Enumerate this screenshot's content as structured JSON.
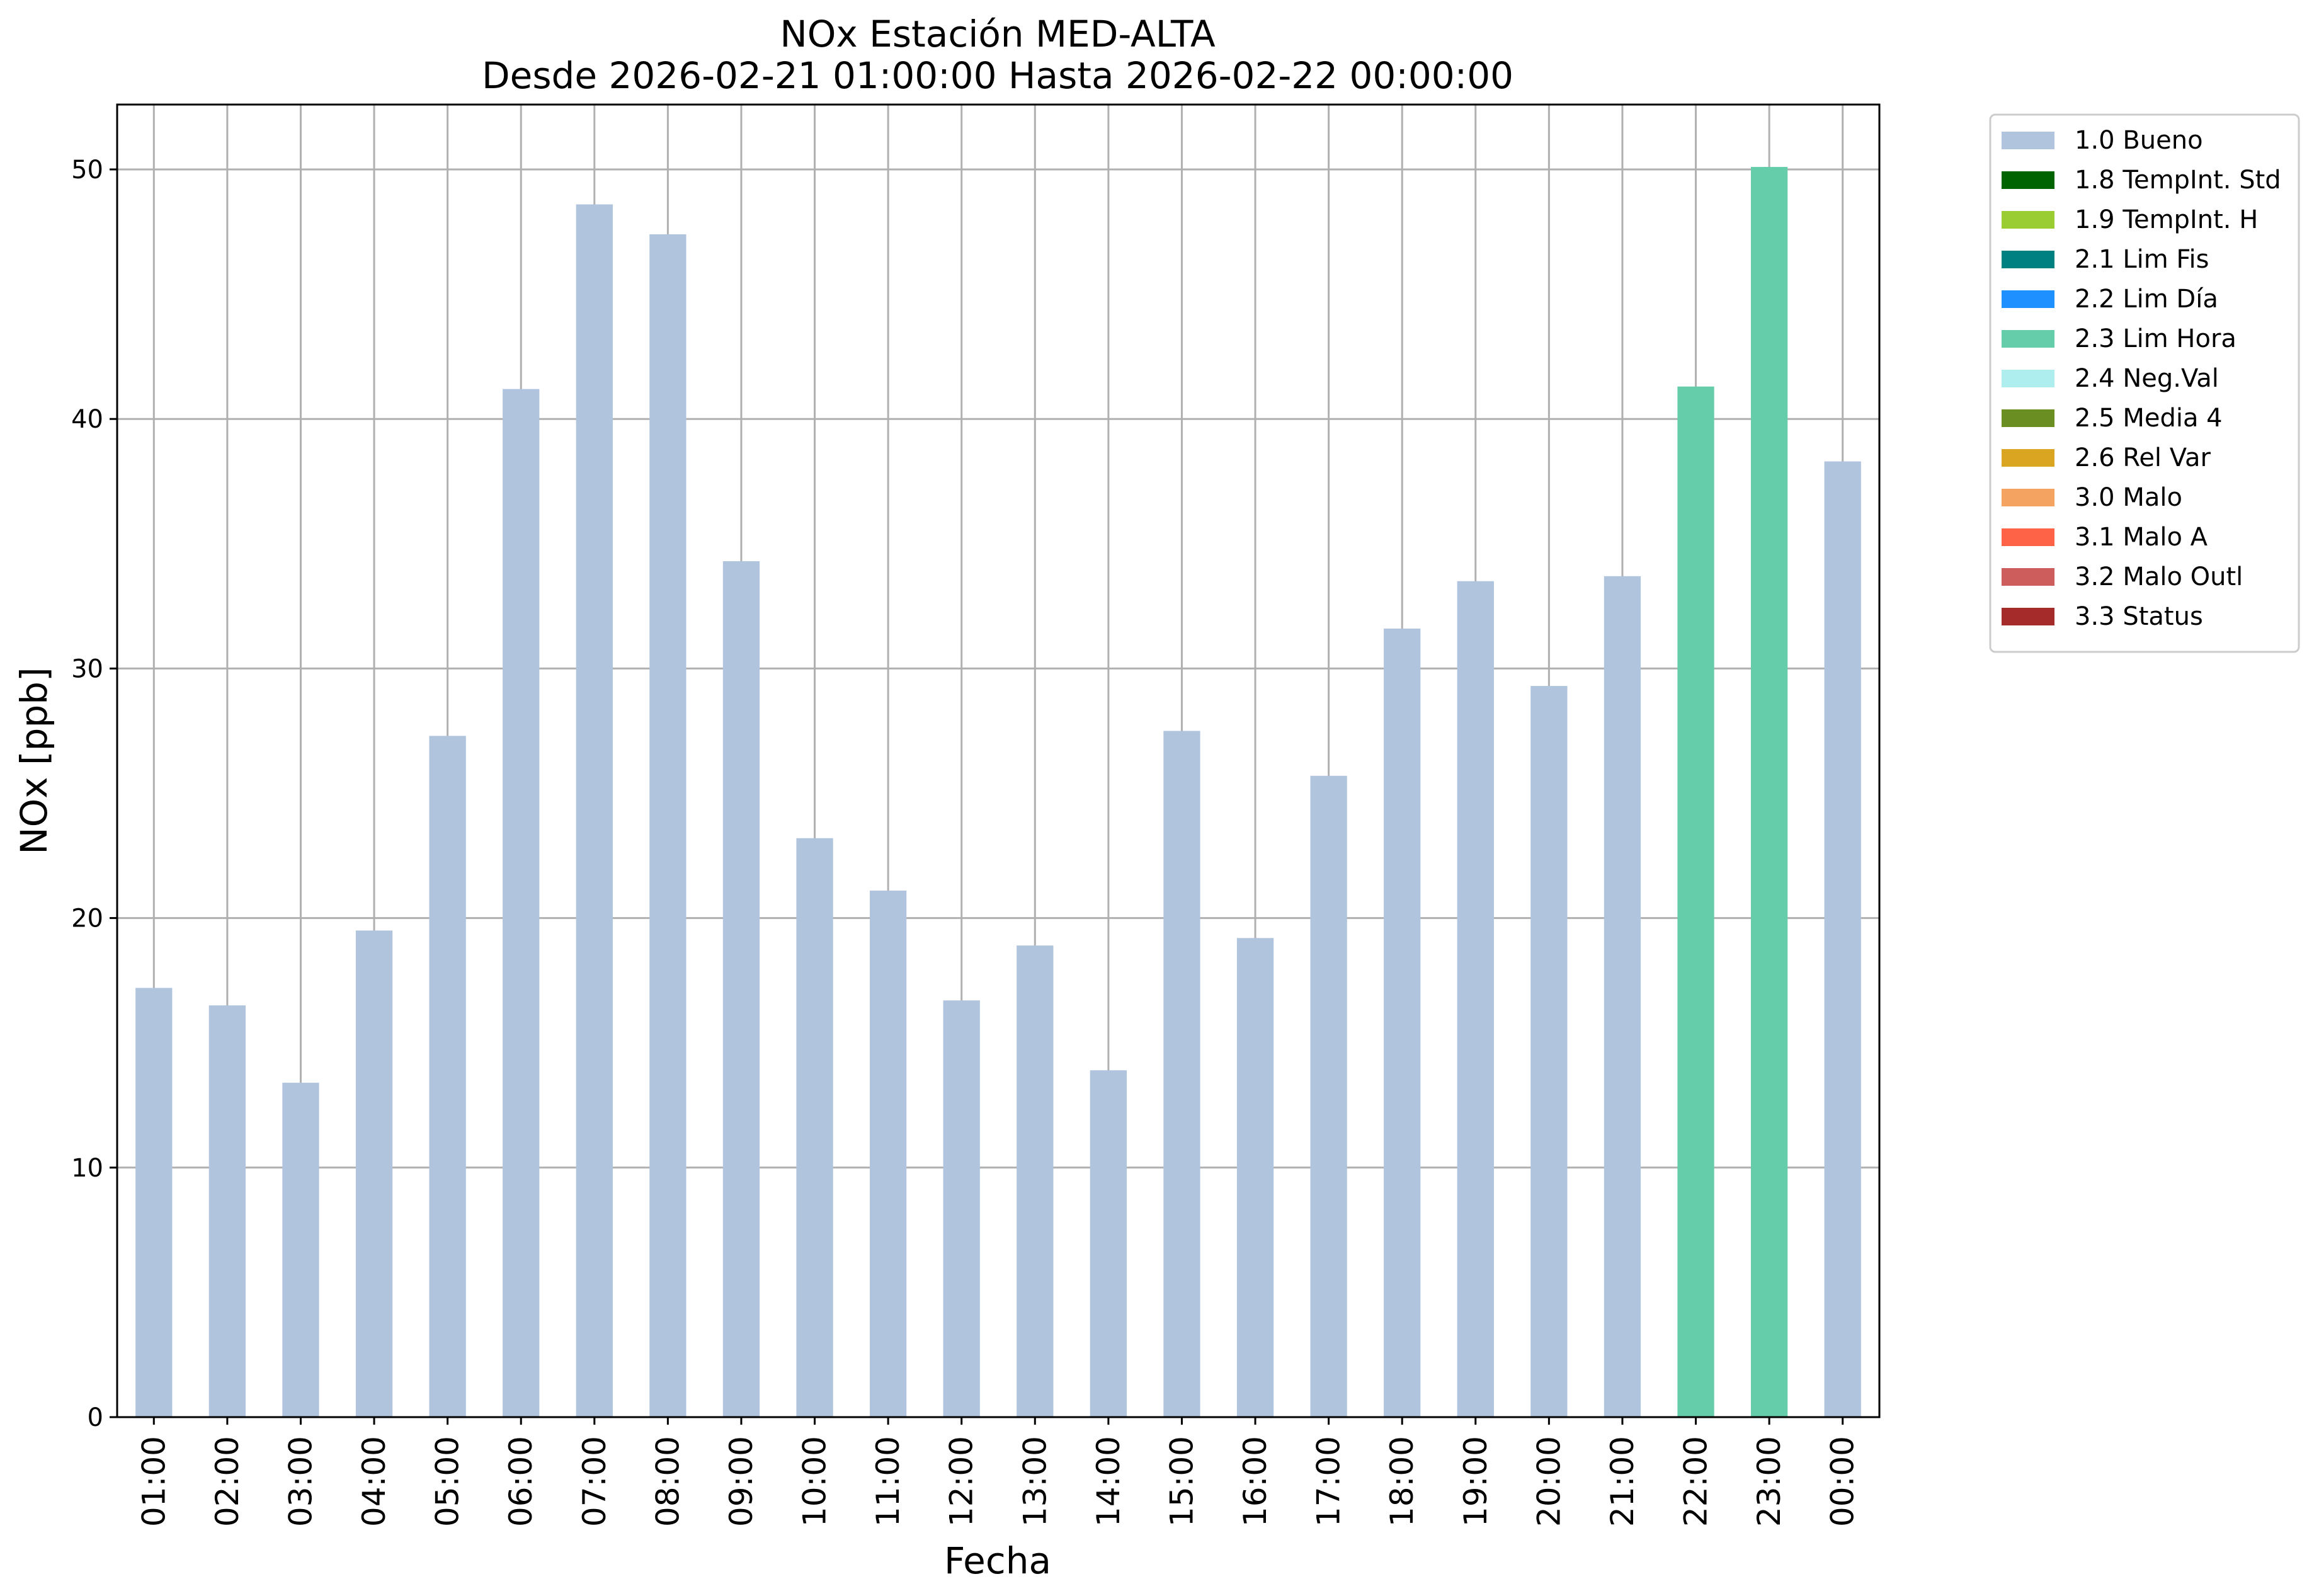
{
  "chart_data": {
    "type": "bar",
    "title": "NOx Estación MED-ALTA",
    "subtitle": "Desde 2026-02-21 01:00:00 Hasta 2026-02-22 00:00:00",
    "xlabel": "Fecha",
    "ylabel": "NOx [ppb]",
    "ylim": [
      0,
      52.6
    ],
    "yticks": [
      0,
      10,
      20,
      30,
      40,
      50
    ],
    "grid": true,
    "legend_position": "outside-top-right",
    "categories": [
      "01:00",
      "02:00",
      "03:00",
      "04:00",
      "05:00",
      "06:00",
      "07:00",
      "08:00",
      "09:00",
      "10:00",
      "11:00",
      "12:00",
      "13:00",
      "14:00",
      "15:00",
      "16:00",
      "17:00",
      "18:00",
      "19:00",
      "20:00",
      "21:00",
      "22:00",
      "23:00",
      "00:00"
    ],
    "values": [
      17.2,
      16.5,
      13.4,
      19.5,
      27.3,
      41.2,
      48.6,
      47.4,
      34.3,
      23.2,
      21.1,
      16.7,
      18.9,
      13.9,
      27.5,
      19.2,
      25.7,
      31.6,
      33.5,
      29.3,
      33.7,
      41.3,
      50.1,
      38.3
    ],
    "flags": [
      "1.0 Bueno",
      "1.0 Bueno",
      "1.0 Bueno",
      "1.0 Bueno",
      "1.0 Bueno",
      "1.0 Bueno",
      "1.0 Bueno",
      "1.0 Bueno",
      "1.0 Bueno",
      "1.0 Bueno",
      "1.0 Bueno",
      "1.0 Bueno",
      "1.0 Bueno",
      "1.0 Bueno",
      "1.0 Bueno",
      "1.0 Bueno",
      "1.0 Bueno",
      "1.0 Bueno",
      "1.0 Bueno",
      "1.0 Bueno",
      "1.0 Bueno",
      "2.3 Lim Hora",
      "2.3 Lim Hora",
      "1.0 Bueno"
    ],
    "legend": [
      {
        "label": "1.0 Bueno",
        "color": "#b0c4de"
      },
      {
        "label": "1.8 TempInt. Std",
        "color": "#006400"
      },
      {
        "label": "1.9 TempInt. H",
        "color": "#9acd32"
      },
      {
        "label": "2.1 Lim Fis",
        "color": "#008080"
      },
      {
        "label": "2.2 Lim Día",
        "color": "#1e90ff"
      },
      {
        "label": "2.3 Lim Hora",
        "color": "#66cdaa"
      },
      {
        "label": "2.4 Neg.Val",
        "color": "#afeeee"
      },
      {
        "label": "2.5 Media 4",
        "color": "#6b8e23"
      },
      {
        "label": "2.6 Rel Var",
        "color": "#daa520"
      },
      {
        "label": "3.0 Malo",
        "color": "#f4a460"
      },
      {
        "label": "3.1 Malo A",
        "color": "#ff6347"
      },
      {
        "label": "3.2 Malo Outl",
        "color": "#cd5c5c"
      },
      {
        "label": "3.3 Status",
        "color": "#a52a2a"
      }
    ]
  }
}
